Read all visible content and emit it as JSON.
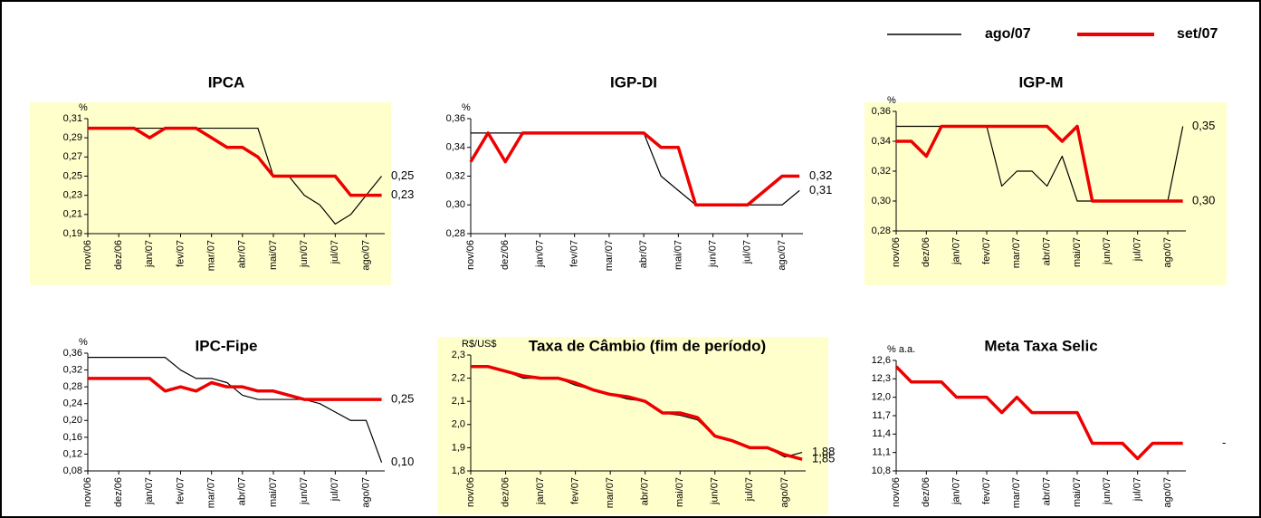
{
  "chart_data": [
    {
      "type": "line",
      "title": "IPCA",
      "y_label": "%",
      "background": "#ffffcc",
      "x": [
        0,
        0.5,
        1,
        1.5,
        2,
        2.5,
        3,
        3.5,
        4,
        4.5,
        5,
        5.5,
        6,
        6.5,
        7,
        7.5,
        8,
        8.5,
        9,
        9.5
      ],
      "xlim": [
        0,
        9.6
      ],
      "xticks": [
        {
          "value": 0,
          "label": "nov/06"
        },
        {
          "value": 1,
          "label": "dez/06"
        },
        {
          "value": 2,
          "label": "jan/07"
        },
        {
          "value": 3,
          "label": "fev/07"
        },
        {
          "value": 4,
          "label": "mar/07"
        },
        {
          "value": 5,
          "label": "abr/07"
        },
        {
          "value": 6,
          "label": "mai/07"
        },
        {
          "value": 7,
          "label": "jun/07"
        },
        {
          "value": 8,
          "label": "jul/07"
        },
        {
          "value": 9,
          "label": "ago/07"
        }
      ],
      "ylim": [
        0.19,
        0.31
      ],
      "yticks": [
        {
          "value": 0.19,
          "label": "0,19"
        },
        {
          "value": 0.21,
          "label": "0,21"
        },
        {
          "value": 0.23,
          "label": "0,23"
        },
        {
          "value": 0.25,
          "label": "0,25"
        },
        {
          "value": 0.27,
          "label": "0,27"
        },
        {
          "value": 0.29,
          "label": "0,29"
        },
        {
          "value": 0.31,
          "label": "0,31"
        }
      ],
      "series": [
        {
          "name": "ago/07",
          "color": "#000000",
          "width": 1.2,
          "end_label": "0,25",
          "values": [
            0.3,
            0.3,
            0.3,
            0.3,
            0.3,
            0.3,
            0.3,
            0.3,
            0.3,
            0.3,
            0.3,
            0.3,
            0.25,
            0.25,
            0.23,
            0.22,
            0.2,
            0.21,
            0.23,
            0.25
          ]
        },
        {
          "name": "set/07",
          "color": "#ee0000",
          "width": 3.5,
          "end_label": "0,23",
          "values": [
            0.3,
            0.3,
            0.3,
            0.3,
            0.29,
            0.3,
            0.3,
            0.3,
            0.29,
            0.28,
            0.28,
            0.27,
            0.25,
            0.25,
            0.25,
            0.25,
            0.25,
            0.23,
            0.23,
            0.23
          ]
        }
      ]
    },
    {
      "type": "line",
      "title": "IGP-DI",
      "y_label": "%",
      "x": [
        0,
        0.5,
        1,
        1.5,
        2,
        2.5,
        3,
        3.5,
        4,
        4.5,
        5,
        5.5,
        6,
        6.5,
        7,
        7.5,
        8,
        8.5,
        9,
        9.5
      ],
      "xlim": [
        0,
        9.6
      ],
      "xticks": [
        {
          "value": 0,
          "label": "nov/06"
        },
        {
          "value": 1,
          "label": "dez/06"
        },
        {
          "value": 2,
          "label": "jan/07"
        },
        {
          "value": 3,
          "label": "fev/07"
        },
        {
          "value": 4,
          "label": "mar/07"
        },
        {
          "value": 5,
          "label": "abr/07"
        },
        {
          "value": 6,
          "label": "mai/07"
        },
        {
          "value": 7,
          "label": "jun/07"
        },
        {
          "value": 8,
          "label": "jul/07"
        },
        {
          "value": 9,
          "label": "ago/07"
        }
      ],
      "ylim": [
        0.28,
        0.36
      ],
      "yticks": [
        {
          "value": 0.28,
          "label": "0,28"
        },
        {
          "value": 0.3,
          "label": "0,30"
        },
        {
          "value": 0.32,
          "label": "0,32"
        },
        {
          "value": 0.34,
          "label": "0,34"
        },
        {
          "value": 0.36,
          "label": "0,36"
        }
      ],
      "series": [
        {
          "name": "ago/07",
          "color": "#000000",
          "width": 1.2,
          "end_label": "0,31",
          "values": [
            0.35,
            0.35,
            0.35,
            0.35,
            0.35,
            0.35,
            0.35,
            0.35,
            0.35,
            0.35,
            0.35,
            0.32,
            0.31,
            0.3,
            0.3,
            0.3,
            0.3,
            0.3,
            0.3,
            0.31
          ]
        },
        {
          "name": "set/07",
          "color": "#ee0000",
          "width": 3.5,
          "end_label": "0,32",
          "values": [
            0.33,
            0.35,
            0.33,
            0.35,
            0.35,
            0.35,
            0.35,
            0.35,
            0.35,
            0.35,
            0.35,
            0.34,
            0.34,
            0.3,
            0.3,
            0.3,
            0.3,
            0.31,
            0.32,
            0.32
          ]
        }
      ]
    },
    {
      "type": "line",
      "title": "IGP-M",
      "y_label": "%",
      "background": "#ffffcc",
      "x": [
        0,
        0.5,
        1,
        1.5,
        2,
        2.5,
        3,
        3.5,
        4,
        4.5,
        5,
        5.5,
        6,
        6.5,
        7,
        7.5,
        8,
        8.5,
        9,
        9.5
      ],
      "xlim": [
        0,
        9.6
      ],
      "xticks": [
        {
          "value": 0,
          "label": "nov/06"
        },
        {
          "value": 1,
          "label": "dez/06"
        },
        {
          "value": 2,
          "label": "jan/07"
        },
        {
          "value": 3,
          "label": "fev/07"
        },
        {
          "value": 4,
          "label": "mar/07"
        },
        {
          "value": 5,
          "label": "abr/07"
        },
        {
          "value": 6,
          "label": "mai/07"
        },
        {
          "value": 7,
          "label": "jun/07"
        },
        {
          "value": 8,
          "label": "jul/07"
        },
        {
          "value": 9,
          "label": "ago/07"
        }
      ],
      "ylim": [
        0.28,
        0.36
      ],
      "yticks": [
        {
          "value": 0.28,
          "label": "0,28"
        },
        {
          "value": 0.3,
          "label": "0,30"
        },
        {
          "value": 0.32,
          "label": "0,32"
        },
        {
          "value": 0.34,
          "label": "0,34"
        },
        {
          "value": 0.36,
          "label": "0,36"
        }
      ],
      "series": [
        {
          "name": "ago/07",
          "color": "#000000",
          "width": 1.2,
          "end_label": "0,35",
          "values": [
            0.35,
            0.35,
            0.35,
            0.35,
            0.35,
            0.35,
            0.35,
            0.31,
            0.32,
            0.32,
            0.31,
            0.33,
            0.3,
            0.3,
            0.3,
            0.3,
            0.3,
            0.3,
            0.3,
            0.35
          ]
        },
        {
          "name": "set/07",
          "color": "#ee0000",
          "width": 3.5,
          "end_label": "0,30",
          "values": [
            0.34,
            0.34,
            0.33,
            0.35,
            0.35,
            0.35,
            0.35,
            0.35,
            0.35,
            0.35,
            0.35,
            0.34,
            0.35,
            0.3,
            0.3,
            0.3,
            0.3,
            0.3,
            0.3,
            0.3
          ]
        }
      ]
    },
    {
      "type": "line",
      "title": "IPC-Fipe",
      "y_label": "%",
      "x": [
        0,
        0.5,
        1,
        1.5,
        2,
        2.5,
        3,
        3.5,
        4,
        4.5,
        5,
        5.5,
        6,
        6.5,
        7,
        7.5,
        8,
        8.5,
        9,
        9.5
      ],
      "xlim": [
        0,
        9.6
      ],
      "xticks": [
        {
          "value": 0,
          "label": "nov/06"
        },
        {
          "value": 1,
          "label": "dez/06"
        },
        {
          "value": 2,
          "label": "jan/07"
        },
        {
          "value": 3,
          "label": "fev/07"
        },
        {
          "value": 4,
          "label": "mar/07"
        },
        {
          "value": 5,
          "label": "abr/07"
        },
        {
          "value": 6,
          "label": "mai/07"
        },
        {
          "value": 7,
          "label": "jun/07"
        },
        {
          "value": 8,
          "label": "jul/07"
        },
        {
          "value": 9,
          "label": "ago/07"
        }
      ],
      "ylim": [
        0.08,
        0.36
      ],
      "yticks": [
        {
          "value": 0.08,
          "label": "0,08"
        },
        {
          "value": 0.12,
          "label": "0,12"
        },
        {
          "value": 0.16,
          "label": "0,16"
        },
        {
          "value": 0.2,
          "label": "0,20"
        },
        {
          "value": 0.24,
          "label": "0,24"
        },
        {
          "value": 0.28,
          "label": "0,28"
        },
        {
          "value": 0.32,
          "label": "0,32"
        },
        {
          "value": 0.36,
          "label": "0,36"
        }
      ],
      "series": [
        {
          "name": "ago/07",
          "color": "#000000",
          "width": 1.2,
          "end_label": "0,10",
          "values": [
            0.35,
            0.35,
            0.35,
            0.35,
            0.35,
            0.35,
            0.32,
            0.3,
            0.3,
            0.29,
            0.26,
            0.25,
            0.25,
            0.25,
            0.25,
            0.24,
            0.22,
            0.2,
            0.2,
            0.1
          ]
        },
        {
          "name": "set/07",
          "color": "#ee0000",
          "width": 3.5,
          "end_label": "0,25",
          "values": [
            0.3,
            0.3,
            0.3,
            0.3,
            0.3,
            0.27,
            0.28,
            0.27,
            0.29,
            0.28,
            0.28,
            0.27,
            0.27,
            0.26,
            0.25,
            0.25,
            0.25,
            0.25,
            0.25,
            0.25
          ]
        }
      ]
    },
    {
      "type": "line",
      "title": "Taxa de Câmbio (fim de período)",
      "y_label": "R$/US$",
      "background": "#ffffcc",
      "x": [
        0,
        0.5,
        1,
        1.5,
        2,
        2.5,
        3,
        3.5,
        4,
        4.5,
        5,
        5.5,
        6,
        6.5,
        7,
        7.5,
        8,
        8.5,
        9,
        9.5
      ],
      "xlim": [
        0,
        9.6
      ],
      "xticks": [
        {
          "value": 0,
          "label": "nov/06"
        },
        {
          "value": 1,
          "label": "dez/06"
        },
        {
          "value": 2,
          "label": "jan/07"
        },
        {
          "value": 3,
          "label": "fev/07"
        },
        {
          "value": 4,
          "label": "mar/07"
        },
        {
          "value": 5,
          "label": "abr/07"
        },
        {
          "value": 6,
          "label": "mai/07"
        },
        {
          "value": 7,
          "label": "jun/07"
        },
        {
          "value": 8,
          "label": "jul/07"
        },
        {
          "value": 9,
          "label": "ago/07"
        }
      ],
      "ylim": [
        1.8,
        2.3
      ],
      "yticks": [
        {
          "value": 1.8,
          "label": "1,8"
        },
        {
          "value": 1.9,
          "label": "1,9"
        },
        {
          "value": 2,
          "label": "2,0"
        },
        {
          "value": 2.1,
          "label": "2,1"
        },
        {
          "value": 2.2,
          "label": "2,2"
        },
        {
          "value": 2.3,
          "label": "2,3"
        }
      ],
      "series": [
        {
          "name": "ago/07",
          "color": "#000000",
          "width": 1.2,
          "end_label": "1,88",
          "values": [
            2.25,
            2.25,
            2.23,
            2.2,
            2.2,
            2.2,
            2.17,
            2.15,
            2.13,
            2.11,
            2.1,
            2.05,
            2.04,
            2.02,
            1.95,
            1.93,
            1.9,
            1.9,
            1.86,
            1.88
          ]
        },
        {
          "name": "set/07",
          "color": "#ee0000",
          "width": 3.5,
          "end_label": "1,85",
          "values": [
            2.25,
            2.25,
            2.23,
            2.21,
            2.2,
            2.2,
            2.18,
            2.15,
            2.13,
            2.12,
            2.1,
            2.05,
            2.05,
            2.03,
            1.95,
            1.93,
            1.9,
            1.9,
            1.87,
            1.85
          ]
        }
      ]
    },
    {
      "type": "line",
      "title": "Meta Taxa Selic",
      "y_label": "% a.a.",
      "annotation": "-",
      "x": [
        0,
        0.5,
        1,
        1.5,
        2,
        2.5,
        3,
        3.5,
        4,
        4.5,
        5,
        5.5,
        6,
        6.5,
        7,
        7.5,
        8,
        8.5,
        9,
        9.5
      ],
      "xlim": [
        0,
        9.6
      ],
      "xticks": [
        {
          "value": 0,
          "label": "nov/06"
        },
        {
          "value": 1,
          "label": "dez/06"
        },
        {
          "value": 2,
          "label": "jan/07"
        },
        {
          "value": 3,
          "label": "fev/07"
        },
        {
          "value": 4,
          "label": "mar/07"
        },
        {
          "value": 5,
          "label": "abr/07"
        },
        {
          "value": 6,
          "label": "mai/07"
        },
        {
          "value": 7,
          "label": "jun/07"
        },
        {
          "value": 8,
          "label": "jul/07"
        },
        {
          "value": 9,
          "label": "ago/07"
        }
      ],
      "ylim": [
        10.8,
        12.6
      ],
      "yticks": [
        {
          "value": 10.8,
          "label": "10,8"
        },
        {
          "value": 11.1,
          "label": "11,1"
        },
        {
          "value": 11.4,
          "label": "11,4"
        },
        {
          "value": 11.7,
          "label": "11,7"
        },
        {
          "value": 12,
          "label": "12,0"
        },
        {
          "value": 12.3,
          "label": "12,3"
        },
        {
          "value": 12.6,
          "label": "12,6"
        }
      ],
      "series": [
        {
          "name": "set/07",
          "color": "#ee0000",
          "width": 3.5,
          "values": [
            12.5,
            12.25,
            12.25,
            12.25,
            12.0,
            12.0,
            12.0,
            11.75,
            12.0,
            11.75,
            11.75,
            11.75,
            11.75,
            11.25,
            11.25,
            11.25,
            11.0,
            11.25,
            11.25,
            11.25
          ]
        }
      ]
    }
  ]
}
